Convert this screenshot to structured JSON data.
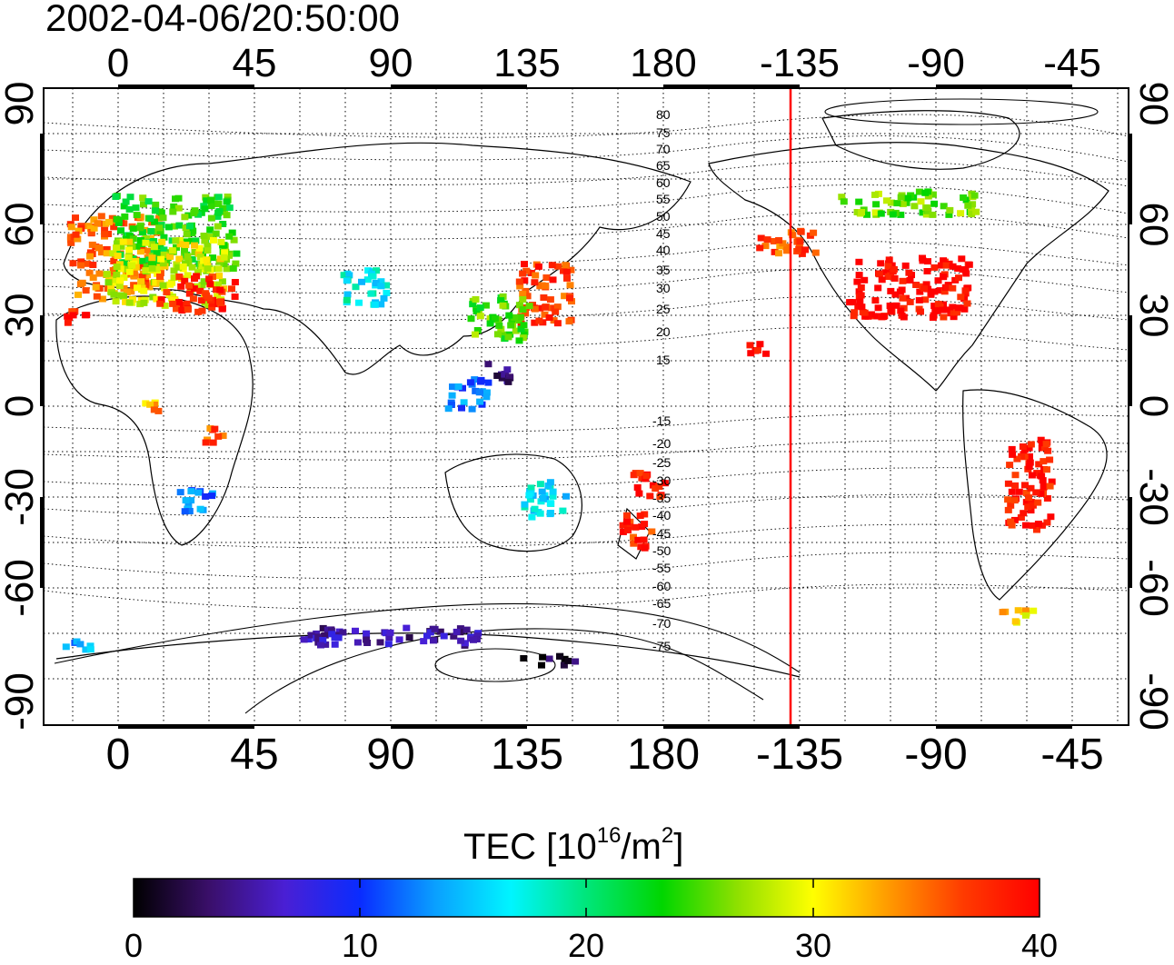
{
  "title": "2002-04-06/20:50:00",
  "top_lon_ticks": [
    "0",
    "45",
    "90",
    "135",
    "180",
    "-135",
    "-90",
    "-45"
  ],
  "bottom_lon_ticks": [
    "0",
    "45",
    "90",
    "135",
    "180",
    "-135",
    "-90",
    "-45"
  ],
  "left_lat_ticks": [
    "90",
    "60",
    "30",
    "0",
    "-30",
    "-60",
    "-90"
  ],
  "right_lat_ticks": [
    "90",
    "60",
    "30",
    "0",
    "-30",
    "-60",
    "-90"
  ],
  "contour_labels_north": [
    "80",
    "75",
    "70",
    "65",
    "60",
    "55",
    "50",
    "45",
    "40",
    "35",
    "30",
    "25",
    "20",
    "15"
  ],
  "contour_labels_south": [
    "-15",
    "-20",
    "-25",
    "-30",
    "-35",
    "-40",
    "-45",
    "-50",
    "-55",
    "-60",
    "-65",
    "-70",
    "-75"
  ],
  "colorbar": {
    "label_main": "TEC  [10",
    "label_sup1": "16",
    "label_mid": "/m",
    "label_sup2": "2",
    "label_end": "]",
    "ticks": [
      "0",
      "10",
      "20",
      "30",
      "40"
    ],
    "min": 0,
    "max": 40,
    "stops": [
      "#000000",
      "#3a0f6a",
      "#4a1fd4",
      "#0a2cff",
      "#0aa0ff",
      "#00f5ff",
      "#00e67a",
      "#00d600",
      "#8fe000",
      "#ffff00",
      "#ff9a00",
      "#ff3a00",
      "#ff0000"
    ]
  },
  "colors": {
    "terminator_line": "#ff0000"
  },
  "terminator_longitude": -138,
  "tec_clusters": [
    {
      "lon": -2,
      "lat": 50,
      "w": 30,
      "h": 28,
      "tec": 35
    },
    {
      "lon": 18,
      "lat": 58,
      "w": 40,
      "h": 25,
      "tec": 24
    },
    {
      "lon": 15,
      "lat": 45,
      "w": 40,
      "h": 22,
      "tec": 29
    },
    {
      "lon": 25,
      "lat": 38,
      "w": 25,
      "h": 12,
      "tec": 38
    },
    {
      "lon": -15,
      "lat": 30,
      "w": 8,
      "h": 6,
      "tec": 39
    },
    {
      "lon": 80,
      "lat": 40,
      "w": 15,
      "h": 12,
      "tec": 17
    },
    {
      "lon": 140,
      "lat": 38,
      "w": 18,
      "h": 20,
      "tec": 37
    },
    {
      "lon": 125,
      "lat": 30,
      "w": 20,
      "h": 15,
      "tec": 25
    },
    {
      "lon": 125,
      "lat": 12,
      "w": 8,
      "h": 8,
      "tec": 4
    },
    {
      "lon": 115,
      "lat": 5,
      "w": 15,
      "h": 10,
      "tec": 12
    },
    {
      "lon": 170,
      "lat": -40,
      "w": 10,
      "h": 12,
      "tec": 38
    },
    {
      "lon": 175,
      "lat": -25,
      "w": 12,
      "h": 8,
      "tec": 39
    },
    {
      "lon": -150,
      "lat": 20,
      "w": 6,
      "h": 4,
      "tec": 39
    },
    {
      "lon": -100,
      "lat": 40,
      "w": 40,
      "h": 20,
      "tec": 40
    },
    {
      "lon": -140,
      "lat": 55,
      "w": 20,
      "h": 8,
      "tec": 36
    },
    {
      "lon": -100,
      "lat": 68,
      "w": 45,
      "h": 8,
      "tec": 26
    },
    {
      "lon": -60,
      "lat": -25,
      "w": 15,
      "h": 30,
      "tec": 39
    },
    {
      "lon": -65,
      "lat": -68,
      "w": 12,
      "h": 5,
      "tec": 31
    },
    {
      "lon": 25,
      "lat": -30,
      "w": 12,
      "h": 8,
      "tec": 12
    },
    {
      "lon": 140,
      "lat": -30,
      "w": 15,
      "h": 12,
      "tec": 16
    },
    {
      "lon": 90,
      "lat": -75,
      "w": 60,
      "h": 6,
      "tec": 5
    },
    {
      "lon": 140,
      "lat": -83,
      "w": 20,
      "h": 3,
      "tec": 2
    },
    {
      "lon": -15,
      "lat": -78,
      "w": 10,
      "h": 4,
      "tec": 14
    },
    {
      "lon": 30,
      "lat": -8,
      "w": 8,
      "h": 6,
      "tec": 36
    },
    {
      "lon": 10,
      "lat": 0,
      "w": 5,
      "h": 6,
      "tec": 33
    }
  ]
}
